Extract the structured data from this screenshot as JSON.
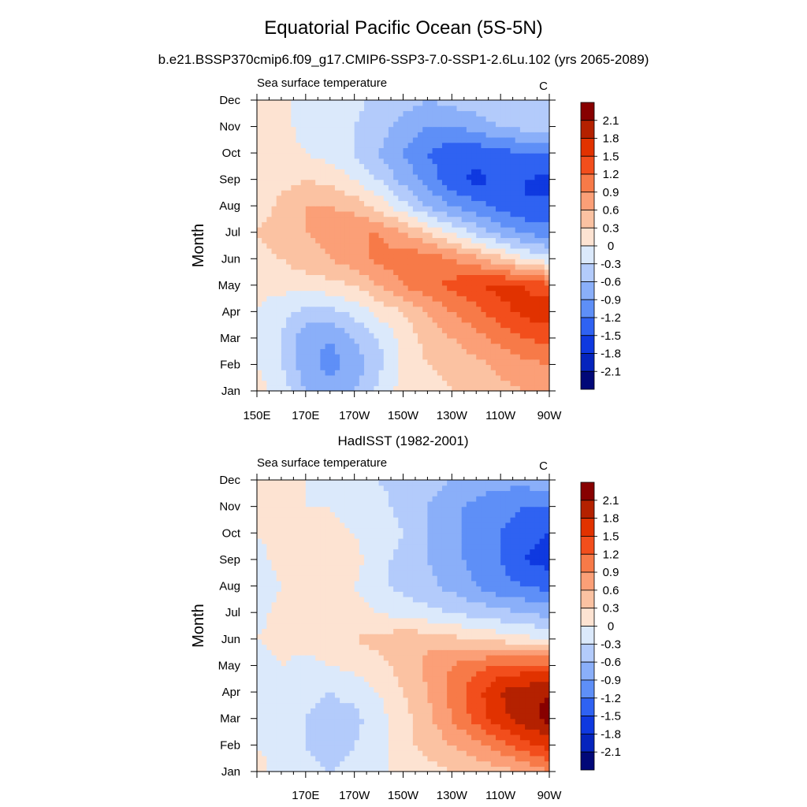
{
  "figure": {
    "title": "Equatorial Pacific Ocean (5S-5N)",
    "subtitle": "b.e21.BSSP370cmip6.f09_g17.CMIP6-SSP3-7.0-SSP1-2.6Lu.102 (yrs 2065-2089)"
  },
  "chart_data": [
    {
      "type": "heatmap",
      "title": "",
      "left_label": "Sea surface temperature",
      "right_label": "C",
      "ylabel": "Month",
      "xlabel": "",
      "x_ticks": [
        "150E",
        "170E",
        "170W",
        "150W",
        "130W",
        "110W",
        "90W"
      ],
      "y_ticks": [
        "Jan",
        "Feb",
        "Mar",
        "Apr",
        "May",
        "Jun",
        "Jul",
        "Aug",
        "Sep",
        "Oct",
        "Nov",
        "Dec"
      ],
      "colorbar_labels": [
        "2.1",
        "1.8",
        "1.5",
        "1.2",
        "0.9",
        "0.6",
        "0.3",
        "0",
        "-0.3",
        "-0.6",
        "-0.9",
        "-1.2",
        "-1.5",
        "-1.8",
        "-2.1"
      ],
      "colorbar_colors": [
        "#870000",
        "#b42100",
        "#e13200",
        "#f24e1c",
        "#f77a48",
        "#fb9f77",
        "#fbc2a2",
        "#fde3d2",
        "#dbe9fb",
        "#b3cbfb",
        "#8aaff9",
        "#5e8ff7",
        "#2f62f2",
        "#0f39e0",
        "#0524bd",
        "#010878"
      ],
      "longitudes": [
        150,
        160,
        170,
        180,
        190,
        200,
        210,
        220,
        230,
        240,
        250,
        260,
        270
      ],
      "months": [
        1,
        2,
        3,
        4,
        5,
        6,
        7,
        8,
        9,
        10,
        11,
        12
      ],
      "values": [
        [
          0.1,
          -0.1,
          -0.6,
          -0.8,
          -0.6,
          -0.2,
          0.1,
          0.2,
          0.3,
          0.4,
          0.5,
          0.6,
          0.7
        ],
        [
          0.0,
          -0.3,
          -0.8,
          -1.0,
          -0.8,
          -0.4,
          0.1,
          0.3,
          0.4,
          0.5,
          0.7,
          0.8,
          0.9
        ],
        [
          0.0,
          -0.3,
          -0.8,
          -0.9,
          -0.6,
          -0.3,
          0.1,
          0.4,
          0.6,
          0.8,
          1.0,
          1.2,
          1.3
        ],
        [
          0.0,
          -0.2,
          -0.4,
          -0.4,
          -0.2,
          0.1,
          0.3,
          0.6,
          0.9,
          1.1,
          1.4,
          1.6,
          1.7
        ],
        [
          0.1,
          0.1,
          0.1,
          0.2,
          0.3,
          0.6,
          0.9,
          1.1,
          1.3,
          1.5,
          1.6,
          1.5,
          1.3
        ],
        [
          0.2,
          0.3,
          0.5,
          0.6,
          0.8,
          1.0,
          1.1,
          1.1,
          0.9,
          0.7,
          0.4,
          0.0,
          -0.2
        ],
        [
          0.3,
          0.5,
          0.6,
          0.7,
          0.9,
          0.9,
          0.6,
          0.3,
          0.0,
          -0.4,
          -0.7,
          -0.9,
          -1.1
        ],
        [
          0.1,
          0.4,
          0.6,
          0.6,
          0.5,
          0.2,
          -0.2,
          -0.6,
          -0.9,
          -1.1,
          -1.3,
          -1.5,
          -1.4
        ],
        [
          0.0,
          0.2,
          0.3,
          0.2,
          0.0,
          -0.3,
          -0.7,
          -1.0,
          -1.4,
          -1.6,
          -1.4,
          -1.5,
          -1.6
        ],
        [
          0.1,
          0.1,
          0.0,
          -0.1,
          -0.3,
          -0.6,
          -0.9,
          -1.2,
          -1.4,
          -1.4,
          -1.3,
          -1.2,
          -1.2
        ],
        [
          0.1,
          0.1,
          -0.1,
          -0.1,
          -0.3,
          -0.5,
          -0.7,
          -0.9,
          -0.9,
          -0.8,
          -0.6,
          -0.5,
          -0.5
        ],
        [
          0.1,
          0.1,
          -0.1,
          -0.1,
          -0.2,
          -0.4,
          -0.5,
          -0.6,
          -0.5,
          -0.4,
          -0.3,
          -0.3,
          -0.4
        ]
      ]
    },
    {
      "type": "heatmap",
      "title": "HadISST (1982-2001)",
      "left_label": "Sea surface temperature",
      "right_label": "C",
      "ylabel": "Month",
      "xlabel": "",
      "x_ticks": [
        "170E",
        "170W",
        "150W",
        "130W",
        "110W",
        "90W"
      ],
      "y_ticks": [
        "Jan",
        "Feb",
        "Mar",
        "Apr",
        "May",
        "Jun",
        "Jul",
        "Aug",
        "Sep",
        "Oct",
        "Nov",
        "Dec"
      ],
      "colorbar_labels": [
        "2.1",
        "1.8",
        "1.5",
        "1.2",
        "0.9",
        "0.6",
        "0.3",
        "0",
        "-0.3",
        "-0.6",
        "-0.9",
        "-1.2",
        "-1.5",
        "-1.8",
        "-2.1"
      ],
      "colorbar_colors": [
        "#870000",
        "#b42100",
        "#e13200",
        "#f24e1c",
        "#f77a48",
        "#fb9f77",
        "#fbc2a2",
        "#fde3d2",
        "#dbe9fb",
        "#b3cbfb",
        "#8aaff9",
        "#5e8ff7",
        "#2f62f2",
        "#0f39e0",
        "#0524bd",
        "#010878"
      ],
      "longitudes": [
        150,
        160,
        170,
        180,
        190,
        200,
        210,
        220,
        230,
        240,
        250,
        260,
        270
      ],
      "months": [
        1,
        2,
        3,
        4,
        5,
        6,
        7,
        8,
        9,
        10,
        11,
        12
      ],
      "values": [
        [
          0.1,
          -0.1,
          -0.2,
          -0.3,
          -0.2,
          -0.1,
          0.1,
          0.2,
          0.3,
          0.4,
          0.5,
          0.6,
          0.9
        ],
        [
          0.0,
          -0.1,
          -0.3,
          -0.4,
          -0.3,
          -0.1,
          0.2,
          0.4,
          0.6,
          0.8,
          1.1,
          1.4,
          1.6
        ],
        [
          -0.1,
          -0.2,
          -0.3,
          -0.4,
          -0.4,
          -0.1,
          0.2,
          0.5,
          0.9,
          1.3,
          1.7,
          2.0,
          2.2
        ],
        [
          -0.1,
          -0.1,
          -0.2,
          -0.3,
          -0.2,
          0.0,
          0.3,
          0.6,
          1.0,
          1.4,
          1.8,
          2.0,
          2.1
        ],
        [
          -0.1,
          0.0,
          -0.1,
          0.0,
          0.1,
          0.2,
          0.4,
          0.7,
          0.9,
          1.1,
          1.3,
          1.3,
          1.3
        ],
        [
          0.0,
          0.1,
          0.1,
          0.2,
          0.3,
          0.4,
          0.5,
          0.5,
          0.4,
          0.3,
          0.2,
          0.1,
          0.0
        ],
        [
          -0.1,
          0.1,
          0.1,
          0.1,
          0.1,
          0.0,
          -0.1,
          -0.2,
          -0.3,
          -0.4,
          -0.5,
          -0.6,
          -0.7
        ],
        [
          -0.2,
          0.0,
          0.1,
          0.1,
          0.0,
          -0.2,
          -0.4,
          -0.5,
          -0.7,
          -0.9,
          -1.1,
          -1.2,
          -1.3
        ],
        [
          -0.1,
          0.1,
          0.2,
          0.3,
          0.1,
          -0.2,
          -0.4,
          -0.6,
          -0.8,
          -1.0,
          -1.2,
          -1.5,
          -1.6
        ],
        [
          0.0,
          0.1,
          0.1,
          0.1,
          0.0,
          -0.1,
          -0.3,
          -0.6,
          -0.8,
          -1.0,
          -1.2,
          -1.4,
          -1.5
        ],
        [
          0.1,
          0.1,
          0.0,
          0.0,
          -0.1,
          -0.2,
          -0.4,
          -0.6,
          -0.8,
          -1.0,
          -1.1,
          -1.2,
          -1.2
        ],
        [
          0.1,
          0.1,
          0.0,
          -0.1,
          -0.2,
          -0.3,
          -0.4,
          -0.5,
          -0.6,
          -0.7,
          -0.8,
          -0.8,
          -0.7
        ]
      ]
    }
  ]
}
